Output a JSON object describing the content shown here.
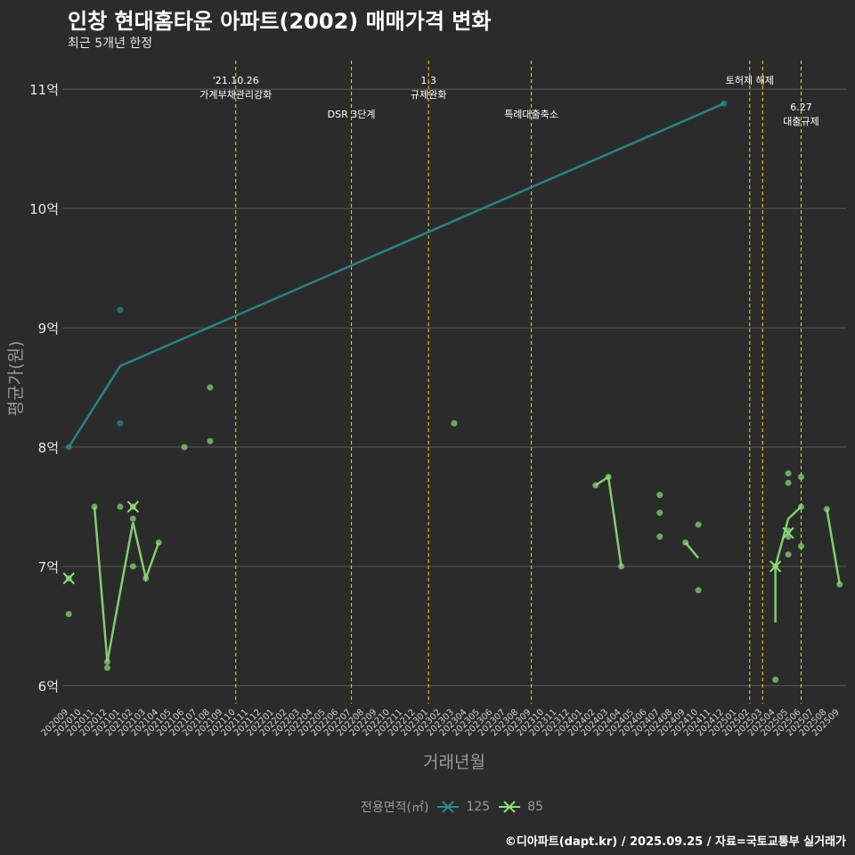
{
  "header": {
    "title": "인창 현대홈타운 아파트(2002) 매매가격 변화",
    "subtitle": "최근 5개년 한정",
    "caption": "©디아파트(dapt.kr) / 2025.09.25 / 자료=국토교통부 실거래가"
  },
  "colors": {
    "s125": "#2a8d8b",
    "s85": "#8ddd7a",
    "vline": "#e6e600",
    "grid": "#5a5a5a"
  },
  "chart_data": {
    "type": "line",
    "title": "인창 현대홈타운 아파트(2002) 매매가격 변화",
    "subtitle": "최근 5개년 한정",
    "xlabel": "거래년월",
    "ylabel": "평균가(원)",
    "ylim": [
      5.85,
      11.3
    ],
    "yticks": [
      {
        "v": 6,
        "label": "6억"
      },
      {
        "v": 7,
        "label": "7억"
      },
      {
        "v": 8,
        "label": "8억"
      },
      {
        "v": 9,
        "label": "9억"
      },
      {
        "v": 10,
        "label": "10억"
      },
      {
        "v": 11,
        "label": "11억"
      }
    ],
    "categories": [
      "202009",
      "202010",
      "202011",
      "202012",
      "202101",
      "202102",
      "202103",
      "202104",
      "202105",
      "202106",
      "202107",
      "202108",
      "202109",
      "202110",
      "202111",
      "202112",
      "202201",
      "202202",
      "202203",
      "202204",
      "202205",
      "202206",
      "202207",
      "202208",
      "202209",
      "202210",
      "202211",
      "202212",
      "202301",
      "202302",
      "202303",
      "202304",
      "202305",
      "202306",
      "202307",
      "202308",
      "202309",
      "202310",
      "202311",
      "202312",
      "202401",
      "202402",
      "202403",
      "202404",
      "202405",
      "202406",
      "202407",
      "202408",
      "202409",
      "202410",
      "202411",
      "202412",
      "202501",
      "202502",
      "202503",
      "202504",
      "202505",
      "202506",
      "202507",
      "202508",
      "202509"
    ],
    "xticklabels": [
      "202009",
      "202010",
      "202011",
      "202012",
      "202101",
      "202102",
      "202103",
      "202104",
      "202105",
      "202106",
      "202107",
      "202108",
      "202109",
      "202110",
      "202111",
      "202112",
      "202201",
      "202202",
      "202203",
      "202204",
      "202205",
      "202206",
      "202207",
      "202208",
      "202209",
      "202210",
      "202211",
      "202212",
      "202301",
      "202302",
      "202303",
      "202304",
      "202305",
      "202306",
      "202307",
      "202308",
      "202309",
      "202310",
      "202311",
      "202312",
      "202401",
      "202402",
      "202403",
      "202404",
      "202405",
      "202406",
      "202407",
      "202408",
      "202409",
      "202410",
      "202411",
      "202412",
      "202501",
      "202502",
      "202503",
      "202504",
      "202505",
      "202506",
      "202507",
      "202508",
      "202509"
    ],
    "legend": {
      "title": "전용면적(㎡)",
      "placement": "bottom"
    },
    "events": [
      {
        "x": "202110",
        "labels": [
          "'21.10.26",
          "가계부채관리강화"
        ],
        "row": 0
      },
      {
        "x": "202207",
        "labels": [
          "DSR 3단계"
        ],
        "row": 1
      },
      {
        "x": "202301",
        "labels": [
          "1.3",
          "규제완화"
        ],
        "row": 0
      },
      {
        "x": "202309",
        "labels": [
          "특례대출축소"
        ],
        "row": 1
      },
      {
        "x": "202502",
        "labels": [
          "토허제 해제"
        ],
        "row": 0
      },
      {
        "x": "202503",
        "labels": [],
        "row": 0
      },
      {
        "x": "202506",
        "labels": [
          "6.27",
          "대출규제"
        ],
        "row": 2
      }
    ],
    "series": [
      {
        "name": "125",
        "line": [
          [
            "202009",
            8.0
          ],
          [
            "202101",
            8.68
          ],
          [
            "202412",
            10.88
          ]
        ],
        "points": [
          [
            "202009",
            8.0
          ],
          [
            "202101",
            9.15
          ],
          [
            "202101",
            8.2
          ],
          [
            "202412",
            10.88
          ]
        ],
        "crosses": []
      },
      {
        "name": "85",
        "line_segments": [
          [
            [
              "202011",
              7.5
            ],
            [
              "202012",
              6.2
            ],
            [
              "202102",
              7.37
            ],
            [
              "202103",
              6.9
            ],
            [
              "202104",
              7.2
            ]
          ],
          [
            [
              "202402",
              7.68
            ],
            [
              "202403",
              7.75
            ],
            [
              "202404",
              7.0
            ]
          ],
          [
            [
              "202409",
              7.2
            ],
            [
              "202410",
              7.07
            ]
          ],
          [
            [
              "202504",
              6.53
            ],
            [
              "202504",
              7.0
            ],
            [
              "202505",
              7.4
            ],
            [
              "202506",
              7.5
            ]
          ],
          [
            [
              "202508",
              7.48
            ],
            [
              "202509",
              6.85
            ]
          ]
        ],
        "points": [
          [
            "202009",
            6.9
          ],
          [
            "202009",
            6.6
          ],
          [
            "202011",
            7.5
          ],
          [
            "202012",
            6.2
          ],
          [
            "202012",
            6.15
          ],
          [
            "202101",
            7.5
          ],
          [
            "202102",
            7.5
          ],
          [
            "202102",
            7.4
          ],
          [
            "202102",
            7.0
          ],
          [
            "202103",
            6.9
          ],
          [
            "202104",
            7.2
          ],
          [
            "202106",
            8.0
          ],
          [
            "202108",
            8.5
          ],
          [
            "202108",
            8.05
          ],
          [
            "202303",
            8.2
          ],
          [
            "202402",
            7.68
          ],
          [
            "202403",
            7.75
          ],
          [
            "202404",
            7.0
          ],
          [
            "202407",
            7.6
          ],
          [
            "202407",
            7.45
          ],
          [
            "202407",
            7.25
          ],
          [
            "202409",
            7.2
          ],
          [
            "202410",
            7.35
          ],
          [
            "202410",
            6.8
          ],
          [
            "202504",
            6.05
          ],
          [
            "202504",
            7.0
          ],
          [
            "202505",
            7.78
          ],
          [
            "202505",
            7.7
          ],
          [
            "202505",
            7.3
          ],
          [
            "202505",
            7.25
          ],
          [
            "202505",
            7.1
          ],
          [
            "202506",
            7.75
          ],
          [
            "202506",
            7.5
          ],
          [
            "202506",
            7.17
          ],
          [
            "202508",
            7.48
          ],
          [
            "202509",
            6.85
          ]
        ],
        "crosses": [
          [
            "202009",
            6.9
          ],
          [
            "202102",
            7.5
          ],
          [
            "202504",
            7.0
          ],
          [
            "202505",
            7.28
          ]
        ]
      }
    ]
  }
}
